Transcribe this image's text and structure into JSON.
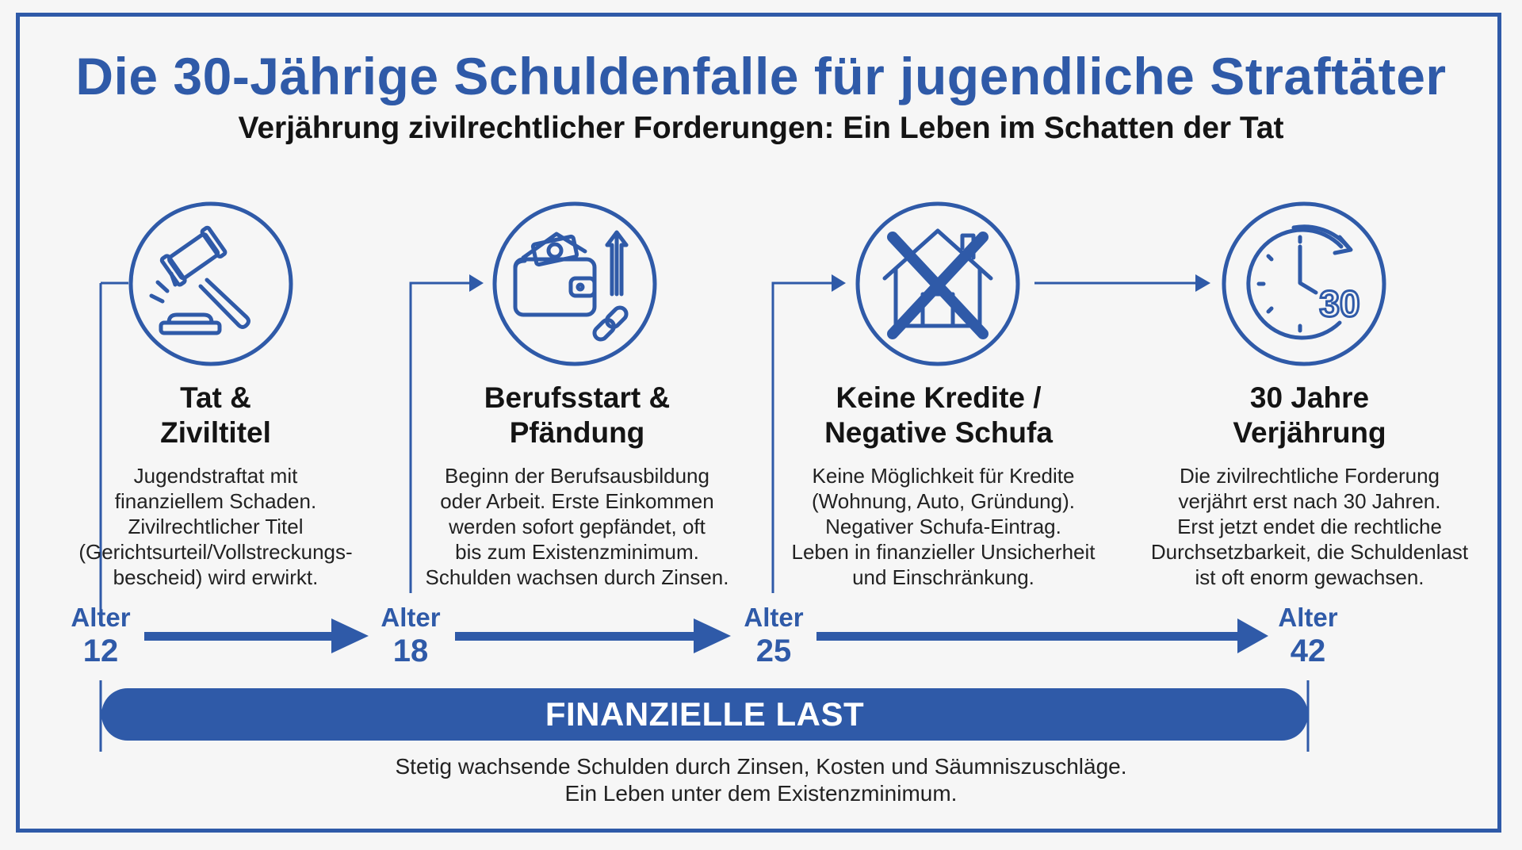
{
  "title": "Die 30-Jährige Schuldenfalle für jugendliche Straftäter",
  "subtitle": "Verjährung zivilrechtlicher Forderungen: Ein Leben im Schatten der Tat",
  "stages": [
    {
      "icon": "gavel-icon",
      "title_line1": "Tat &",
      "title_line2": "Ziviltitel",
      "desc": [
        "Jugendstraftat mit",
        "finanziellem Schaden.",
        "Zivilrechtlicher Titel",
        "(Gerichtsurteil/Vollstreckungs-",
        "bescheid) wird erwirkt."
      ]
    },
    {
      "icon": "wallet-chain-icon",
      "title_line1": "Berufsstart &",
      "title_line2": "Pfändung",
      "desc": [
        "Beginn der Berufsausbildung",
        "oder Arbeit. Erste Einkommen",
        "werden sofort gepfändet, oft",
        "bis zum Existenzminimum.",
        "Schulden wachsen durch Zinsen."
      ]
    },
    {
      "icon": "crossed-house-icon",
      "title_line1": "Keine Kredite /",
      "title_line2": "Negative Schufa",
      "desc": [
        "Keine Möglichkeit für Kredite",
        "(Wohnung, Auto, Gründung).",
        "Negativer Schufa-Eintrag.",
        "Leben in finanzieller Unsicherheit",
        "und Einschränkung."
      ]
    },
    {
      "icon": "clock-30-icon",
      "title_line1": "30 Jahre",
      "title_line2": "Verjährung",
      "desc": [
        "Die zivilrechtliche Forderung",
        "verjährt erst nach 30 Jahren.",
        "Erst jetzt endet die rechtliche",
        "Durchsetzbarkeit, die Schuldenlast",
        "ist oft enorm gewachsen."
      ]
    }
  ],
  "clock_number": "30",
  "ages": [
    {
      "label": "Alter",
      "value": "12"
    },
    {
      "label": "Alter",
      "value": "18"
    },
    {
      "label": "Alter",
      "value": "25"
    },
    {
      "label": "Alter",
      "value": "42"
    }
  ],
  "burden": {
    "label": "FINANZIELLE LAST",
    "desc_line1": "Stetig wachsende Schulden durch Zinsen, Kosten und Säumniszuschläge.",
    "desc_line2": "Ein Leben unter dem Existenzminimum."
  },
  "colors": {
    "accent": "#2f5aa8",
    "text": "#141414",
    "background": "#f6f6f6"
  }
}
